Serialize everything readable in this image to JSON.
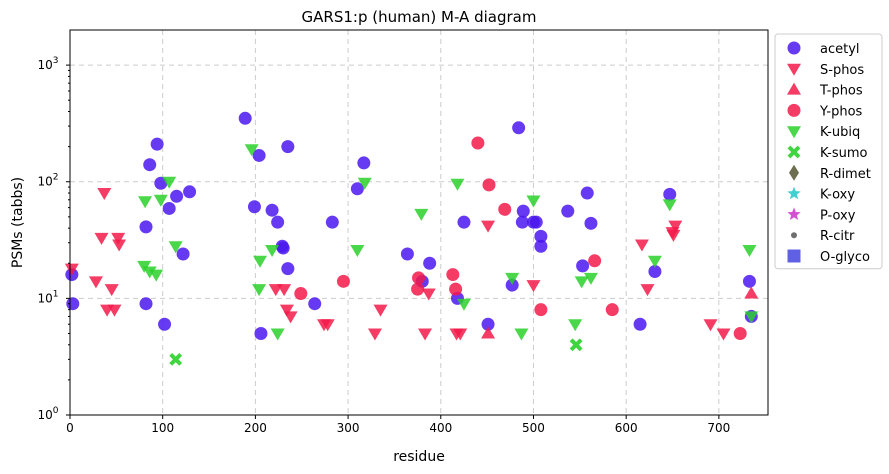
{
  "chart_data": {
    "type": "scatter",
    "title": "GARS1:p (human) M-A diagram",
    "xlabel": "residue",
    "ylabel": "PSMs (tabbs)",
    "xlim": [
      0,
      753
    ],
    "ylim": [
      1,
      2000
    ],
    "y_scale": "log",
    "x_ticks": [
      "0",
      "100",
      "200",
      "300",
      "400",
      "500",
      "600",
      "700"
    ],
    "y_ticks": [
      "10",
      "10",
      "10",
      "10"
    ],
    "y_tick_exponents": [
      "0",
      "1",
      "2",
      "3"
    ],
    "grid": true,
    "legend_position": "outside-right",
    "series": [
      {
        "name": "acetyl",
        "marker": "circle",
        "color": "#4b17f0",
        "points": [
          [
            2,
            16
          ],
          [
            3,
            9
          ],
          [
            82,
            41
          ],
          [
            82,
            9
          ],
          [
            86,
            140
          ],
          [
            94,
            210
          ],
          [
            98,
            97
          ],
          [
            102,
            6
          ],
          [
            107,
            59
          ],
          [
            115,
            75
          ],
          [
            122,
            24
          ],
          [
            129,
            82
          ],
          [
            189,
            350
          ],
          [
            199,
            61
          ],
          [
            204,
            168
          ],
          [
            206,
            5
          ],
          [
            218,
            57
          ],
          [
            224,
            45
          ],
          [
            229,
            28
          ],
          [
            230,
            27
          ],
          [
            235,
            18
          ],
          [
            235,
            200
          ],
          [
            264,
            9
          ],
          [
            283,
            45
          ],
          [
            310,
            87
          ],
          [
            317,
            145
          ],
          [
            364,
            24
          ],
          [
            380,
            14
          ],
          [
            388,
            20
          ],
          [
            418,
            10
          ],
          [
            425,
            45
          ],
          [
            451,
            6
          ],
          [
            477,
            13
          ],
          [
            484,
            290
          ],
          [
            488,
            45
          ],
          [
            489,
            56
          ],
          [
            500,
            45
          ],
          [
            503,
            45
          ],
          [
            508,
            28
          ],
          [
            508,
            34
          ],
          [
            537,
            56
          ],
          [
            553,
            19
          ],
          [
            558,
            80
          ],
          [
            562,
            44
          ],
          [
            615,
            6
          ],
          [
            631,
            17
          ],
          [
            647,
            78
          ],
          [
            733,
            14
          ],
          [
            735,
            7
          ]
        ]
      },
      {
        "name": "S-phos",
        "marker": "triangle-down",
        "color": "#f21a4a",
        "points": [
          [
            2,
            18
          ],
          [
            28,
            14
          ],
          [
            34,
            33
          ],
          [
            37,
            80
          ],
          [
            40,
            8
          ],
          [
            45,
            12
          ],
          [
            48,
            8
          ],
          [
            52,
            33
          ],
          [
            53,
            29
          ],
          [
            222,
            12
          ],
          [
            231,
            12
          ],
          [
            234,
            8
          ],
          [
            238,
            7
          ],
          [
            274,
            6
          ],
          [
            278,
            6
          ],
          [
            329,
            5
          ],
          [
            335,
            8
          ],
          [
            383,
            5
          ],
          [
            387,
            11
          ],
          [
            417,
            5
          ],
          [
            421,
            5
          ],
          [
            451,
            42
          ],
          [
            500,
            13
          ],
          [
            617,
            29
          ],
          [
            623,
            12
          ],
          [
            650,
            37
          ],
          [
            651,
            35
          ],
          [
            653,
            42
          ],
          [
            691,
            6
          ],
          [
            705,
            5
          ]
        ]
      },
      {
        "name": "T-phos",
        "marker": "triangle-up",
        "color": "#f21a4a",
        "points": [
          [
            451,
            5
          ],
          [
            735,
            11
          ]
        ]
      },
      {
        "name": "Y-phos",
        "marker": "circle",
        "color": "#f21a4a",
        "points": [
          [
            249,
            11
          ],
          [
            295,
            14
          ],
          [
            375,
            12
          ],
          [
            376,
            15
          ],
          [
            413,
            16
          ],
          [
            416,
            12
          ],
          [
            440,
            215
          ],
          [
            452,
            94
          ],
          [
            469,
            58
          ],
          [
            508,
            8
          ],
          [
            566,
            21
          ],
          [
            585,
            8
          ],
          [
            723,
            5
          ]
        ]
      },
      {
        "name": "K-ubiq",
        "marker": "triangle-down",
        "color": "#2ad02a",
        "points": [
          [
            80,
            19
          ],
          [
            81,
            68
          ],
          [
            86,
            17
          ],
          [
            93,
            16
          ],
          [
            98,
            70
          ],
          [
            107,
            100
          ],
          [
            114,
            28
          ],
          [
            196,
            190
          ],
          [
            204,
            12
          ],
          [
            205,
            21
          ],
          [
            218,
            26
          ],
          [
            224,
            5
          ],
          [
            310,
            26
          ],
          [
            318,
            98
          ],
          [
            379,
            53
          ],
          [
            418,
            96
          ],
          [
            425,
            9
          ],
          [
            477,
            15
          ],
          [
            487,
            5
          ],
          [
            500,
            69
          ],
          [
            545,
            6
          ],
          [
            552,
            14
          ],
          [
            562,
            15
          ],
          [
            631,
            21
          ],
          [
            647,
            64
          ],
          [
            733,
            26
          ],
          [
            735,
            7
          ]
        ]
      },
      {
        "name": "K-sumo",
        "marker": "x",
        "color": "#2ad02a",
        "points": [
          [
            114,
            3
          ],
          [
            546,
            4
          ]
        ]
      },
      {
        "name": "R-dimet",
        "marker": "diamond",
        "color": "#555533",
        "points": []
      },
      {
        "name": "K-oxy",
        "marker": "star",
        "color": "#1ec8c8",
        "points": []
      },
      {
        "name": "P-oxy",
        "marker": "star",
        "color": "#cc33cc",
        "points": []
      },
      {
        "name": "R-citr",
        "marker": "dot",
        "color": "#555555",
        "points": []
      },
      {
        "name": "O-glyco",
        "marker": "square",
        "color": "#4444e0",
        "points": []
      }
    ]
  }
}
